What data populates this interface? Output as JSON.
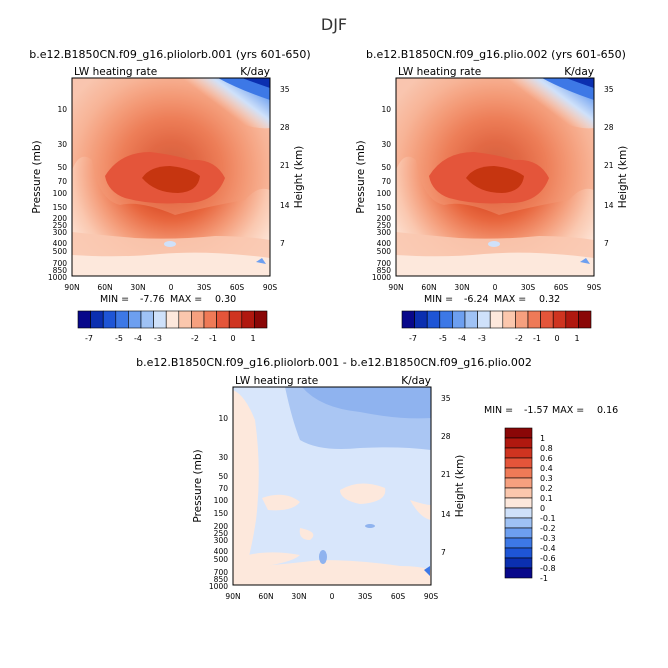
{
  "figure": {
    "title": "DJF"
  },
  "colors": {
    "top_bar": [
      "#08088a",
      "#0b2fb0",
      "#1e55d6",
      "#3d78e6",
      "#6d9ff0",
      "#9fc2f5",
      "#cfe1fa",
      "#fde8dc",
      "#fbc7ad",
      "#f6a07f",
      "#ef7a57",
      "#e4553a",
      "#cf3420",
      "#b0180f",
      "#8a0707"
    ],
    "diff_bar": [
      "#08088a",
      "#0b2fb0",
      "#1e55d6",
      "#3d78e6",
      "#6d9ff0",
      "#9fc2f5",
      "#cfe1fa",
      "#fde8dc",
      "#fbc7ad",
      "#f6a07f",
      "#ef7a57",
      "#e4553a",
      "#cf3420",
      "#b0180f",
      "#8a0707"
    ]
  },
  "chart_data": [
    {
      "type": "heatmap",
      "title": "b.e12.B1850CN.f09_g16.pliolorb.001 (yrs 601-650)",
      "left_label": "LW heating rate",
      "right_label": "K/day",
      "ylabel": "Pressure (mb)",
      "ylabel2": "Height (km)",
      "x_ticks": [
        "90N",
        "60N",
        "30N",
        "0",
        "30S",
        "60S",
        "90S"
      ],
      "y_ticks": [
        "10",
        "30",
        "50",
        "70",
        "100",
        "150",
        "200",
        "250",
        "300",
        "400",
        "500",
        "700",
        "850",
        "1000"
      ],
      "y2_ticks": [
        "35",
        "28",
        "21",
        "14",
        "7"
      ],
      "min_label": "MIN = ",
      "min_value": "-7.76",
      "max_label": "MAX = ",
      "max_value": "0.30",
      "min": -7.76,
      "max": 0.3,
      "colorbar_labels": [
        "-7",
        "-5",
        "-4",
        "-3",
        "-2",
        "-1",
        "0",
        "1"
      ]
    },
    {
      "type": "heatmap",
      "title": "b.e12.B1850CN.f09_g16.plio.002 (yrs 601-650)",
      "left_label": "LW heating rate",
      "right_label": "K/day",
      "ylabel": "Pressure (mb)",
      "ylabel2": "Height (km)",
      "x_ticks": [
        "90N",
        "60N",
        "30N",
        "0",
        "30S",
        "60S",
        "90S"
      ],
      "y_ticks": [
        "10",
        "30",
        "50",
        "70",
        "100",
        "150",
        "200",
        "250",
        "300",
        "400",
        "500",
        "700",
        "850",
        "1000"
      ],
      "y2_ticks": [
        "35",
        "28",
        "21",
        "14",
        "7"
      ],
      "min_label": "MIN = ",
      "min_value": "-6.24",
      "max_label": "MAX = ",
      "max_value": "0.32",
      "min": -6.24,
      "max": 0.32,
      "colorbar_labels": [
        "-7",
        "-5",
        "-4",
        "-3",
        "-2",
        "-1",
        "0",
        "1"
      ]
    },
    {
      "type": "heatmap",
      "title": "b.e12.B1850CN.f09_g16.pliolorb.001 - b.e12.B1850CN.f09_g16.plio.002",
      "left_label": "LW heating rate",
      "right_label": "K/day",
      "ylabel": "Pressure (mb)",
      "ylabel2": "Height (km)",
      "x_ticks": [
        "90N",
        "60N",
        "30N",
        "0",
        "30S",
        "60S",
        "90S"
      ],
      "y_ticks": [
        "10",
        "30",
        "50",
        "70",
        "100",
        "150",
        "200",
        "250",
        "300",
        "400",
        "500",
        "700",
        "850",
        "1000"
      ],
      "y2_ticks": [
        "35",
        "28",
        "21",
        "14",
        "7"
      ],
      "min_label": "MIN = ",
      "min_value": "-1.57",
      "max_label": "MAX = ",
      "max_value": "0.16",
      "min": -1.57,
      "max": 0.16,
      "colorbar_labels": [
        "1",
        "0.8",
        "0.6",
        "0.4",
        "0.3",
        "0.2",
        "0.1",
        "0",
        "-0.1",
        "-0.2",
        "-0.3",
        "-0.4",
        "-0.6",
        "-0.8",
        "-1"
      ]
    }
  ]
}
